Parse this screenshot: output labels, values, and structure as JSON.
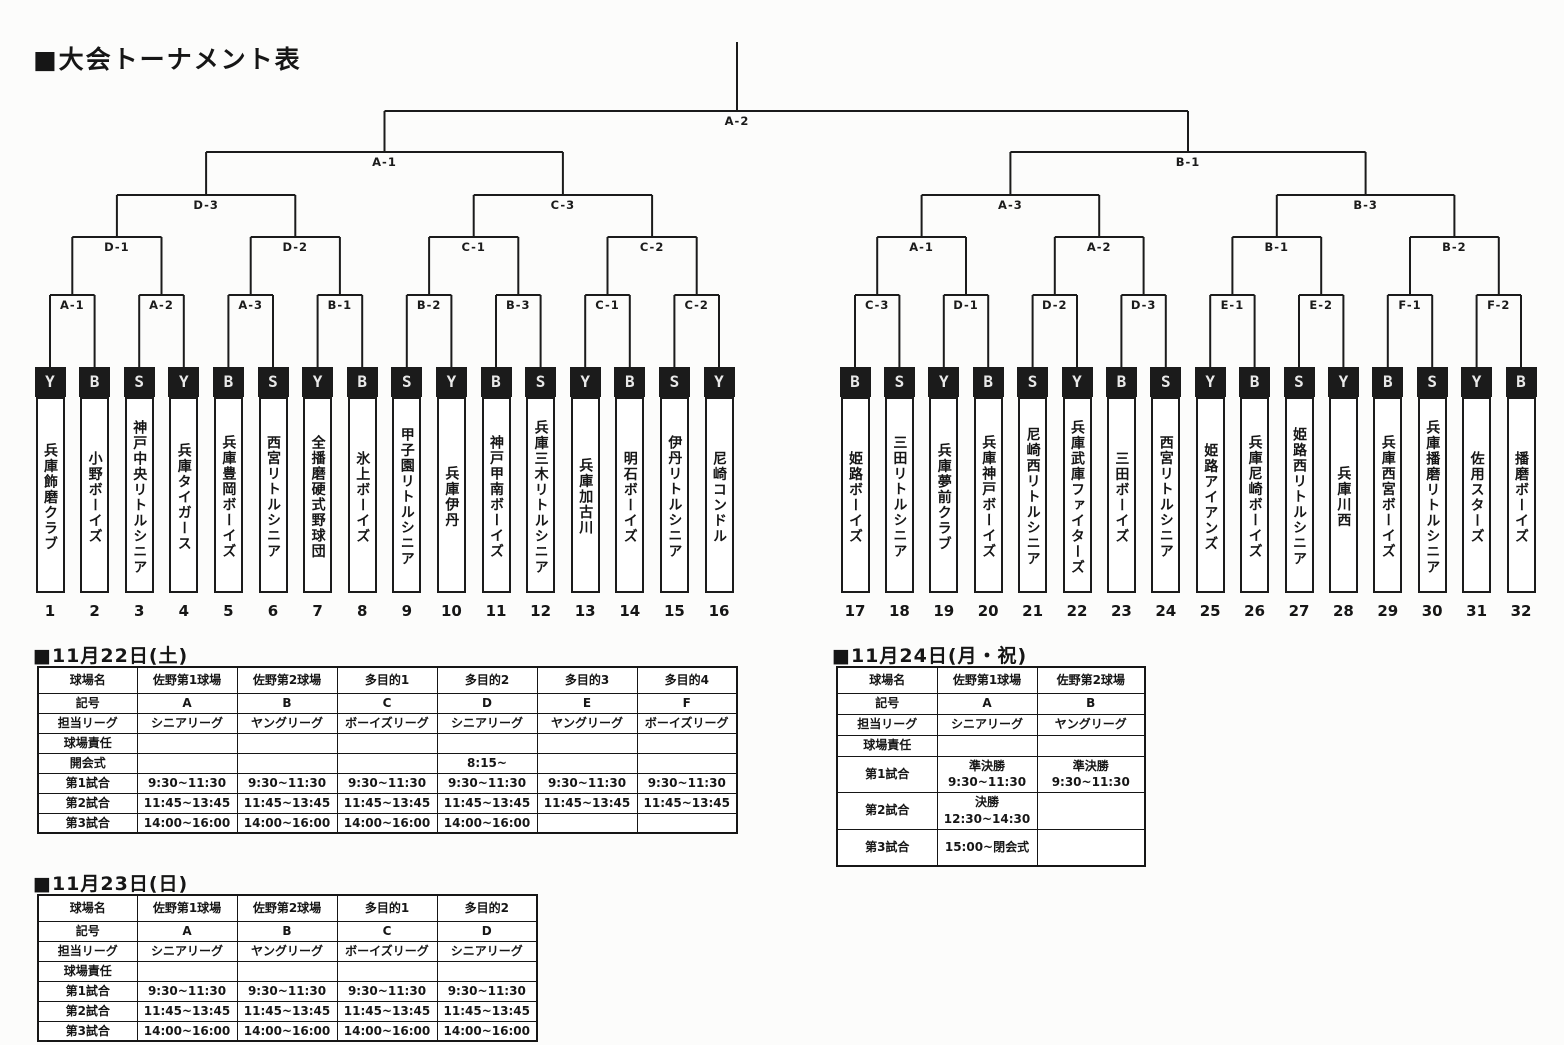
{
  "title": "■大会トーナメント表",
  "bracket": {
    "teams": [
      {
        "no": "1",
        "badge": "Y",
        "name": "兵庫飾磨クラブ"
      },
      {
        "no": "2",
        "badge": "B",
        "name": "小野ボーイズ"
      },
      {
        "no": "3",
        "badge": "S",
        "name": "神戸中央リトルシニア"
      },
      {
        "no": "4",
        "badge": "Y",
        "name": "兵庫タイガース"
      },
      {
        "no": "5",
        "badge": "B",
        "name": "兵庫豊岡ボーイズ"
      },
      {
        "no": "6",
        "badge": "S",
        "name": "西宮リトルシニア"
      },
      {
        "no": "7",
        "badge": "Y",
        "name": "全播磨硬式野球団"
      },
      {
        "no": "8",
        "badge": "B",
        "name": "氷上ボーイズ"
      },
      {
        "no": "9",
        "badge": "S",
        "name": "甲子園リトルシニア"
      },
      {
        "no": "10",
        "badge": "Y",
        "name": "兵庫伊丹"
      },
      {
        "no": "11",
        "badge": "B",
        "name": "神戸甲南ボーイズ"
      },
      {
        "no": "12",
        "badge": "S",
        "name": "兵庫三木リトルシニア"
      },
      {
        "no": "13",
        "badge": "Y",
        "name": "兵庫加古川"
      },
      {
        "no": "14",
        "badge": "B",
        "name": "明石ボーイズ"
      },
      {
        "no": "15",
        "badge": "S",
        "name": "伊丹リトルシニア"
      },
      {
        "no": "16",
        "badge": "Y",
        "name": "尼崎コンドル"
      },
      {
        "no": "17",
        "badge": "B",
        "name": "姫路ボーイズ"
      },
      {
        "no": "18",
        "badge": "S",
        "name": "三田リトルシニア"
      },
      {
        "no": "19",
        "badge": "Y",
        "name": "兵庫夢前クラブ"
      },
      {
        "no": "20",
        "badge": "B",
        "name": "兵庫神戸ボーイズ"
      },
      {
        "no": "21",
        "badge": "S",
        "name": "尼崎西リトルシニア"
      },
      {
        "no": "22",
        "badge": "Y",
        "name": "兵庫武庫ファイターズ"
      },
      {
        "no": "23",
        "badge": "B",
        "name": "三田ボーイズ"
      },
      {
        "no": "24",
        "badge": "S",
        "name": "西宮リトルシニア"
      },
      {
        "no": "25",
        "badge": "Y",
        "name": "姫路アイアンズ"
      },
      {
        "no": "26",
        "badge": "B",
        "name": "兵庫尼崎ボーイズ"
      },
      {
        "no": "27",
        "badge": "S",
        "name": "姫路西リトルシニア"
      },
      {
        "no": "28",
        "badge": "Y",
        "name": "兵庫川西"
      },
      {
        "no": "29",
        "badge": "B",
        "name": "兵庫西宮ボーイズ"
      },
      {
        "no": "30",
        "badge": "S",
        "name": "兵庫播磨リトルシニア"
      },
      {
        "no": "31",
        "badge": "Y",
        "name": "佐用スターズ"
      },
      {
        "no": "32",
        "badge": "B",
        "name": "播磨ボーイズ"
      }
    ],
    "rounds": [
      {
        "name": "round1",
        "labels": [
          "A-1",
          "A-2",
          "A-3",
          "B-1",
          "B-2",
          "B-3",
          "C-1",
          "C-2",
          "C-3",
          "D-1",
          "D-2",
          "D-3",
          "E-1",
          "E-2",
          "F-1",
          "F-2"
        ]
      },
      {
        "name": "round2",
        "labels": [
          "D-1",
          "D-2",
          "C-1",
          "C-2",
          "A-1",
          "A-2",
          "B-1",
          "B-2"
        ]
      },
      {
        "name": "quarterfinal",
        "labels": [
          "D-3",
          "C-3",
          "A-3",
          "B-3"
        ]
      },
      {
        "name": "semifinal",
        "labels": [
          "A-1",
          "B-1"
        ]
      },
      {
        "name": "final",
        "labels": [
          "A-2"
        ]
      }
    ]
  },
  "schedules": [
    {
      "heading": "■11月22日(土)",
      "rows": [
        [
          "球場名",
          "佐野第1球場",
          "佐野第2球場",
          "多目的1",
          "多目的2",
          "多目的3",
          "多目的4"
        ],
        [
          "記号",
          "A",
          "B",
          "C",
          "D",
          "E",
          "F"
        ],
        [
          "担当リーグ",
          "シニアリーグ",
          "ヤングリーグ",
          "ボーイズリーグ",
          "シニアリーグ",
          "ヤングリーグ",
          "ボーイズリーグ"
        ],
        [
          "球場責任",
          "",
          "",
          "",
          "",
          "",
          ""
        ],
        [
          "開会式",
          "",
          "",
          "",
          "8:15~",
          "",
          ""
        ],
        [
          "第1試合",
          "9:30~11:30",
          "9:30~11:30",
          "9:30~11:30",
          "9:30~11:30",
          "9:30~11:30",
          "9:30~11:30"
        ],
        [
          "第2試合",
          "11:45~13:45",
          "11:45~13:45",
          "11:45~13:45",
          "11:45~13:45",
          "11:45~13:45",
          "11:45~13:45"
        ],
        [
          "第3試合",
          "14:00~16:00",
          "14:00~16:00",
          "14:00~16:00",
          "14:00~16:00",
          "",
          ""
        ]
      ]
    },
    {
      "heading": "■11月23日(日)",
      "rows": [
        [
          "球場名",
          "佐野第1球場",
          "佐野第2球場",
          "多目的1",
          "多目的2"
        ],
        [
          "記号",
          "A",
          "B",
          "C",
          "D"
        ],
        [
          "担当リーグ",
          "シニアリーグ",
          "ヤングリーグ",
          "ボーイズリーグ",
          "シニアリーグ"
        ],
        [
          "球場責任",
          "",
          "",
          "",
          ""
        ],
        [
          "第1試合",
          "9:30~11:30",
          "9:30~11:30",
          "9:30~11:30",
          "9:30~11:30"
        ],
        [
          "第2試合",
          "11:45~13:45",
          "11:45~13:45",
          "11:45~13:45",
          "11:45~13:45"
        ],
        [
          "第3試合",
          "14:00~16:00",
          "14:00~16:00",
          "14:00~16:00",
          "14:00~16:00"
        ]
      ]
    },
    {
      "heading": "■11月24日(月・祝)",
      "rows": [
        [
          "球場名",
          "佐野第1球場",
          "佐野第2球場"
        ],
        [
          "記号",
          "A",
          "B"
        ],
        [
          "担当リーグ",
          "シニアリーグ",
          "ヤングリーグ"
        ],
        [
          "球場責任",
          "",
          ""
        ],
        [
          "第1試合",
          "準決勝\n9:30~11:30",
          "準決勝\n9:30~11:30"
        ],
        [
          "第2試合",
          "決勝\n12:30~14:30",
          ""
        ],
        [
          "第3試合",
          "15:00~閉会式",
          ""
        ]
      ]
    }
  ],
  "colors": {
    "ink": "#1b1b1b",
    "paper": "#fcfcfb"
  }
}
